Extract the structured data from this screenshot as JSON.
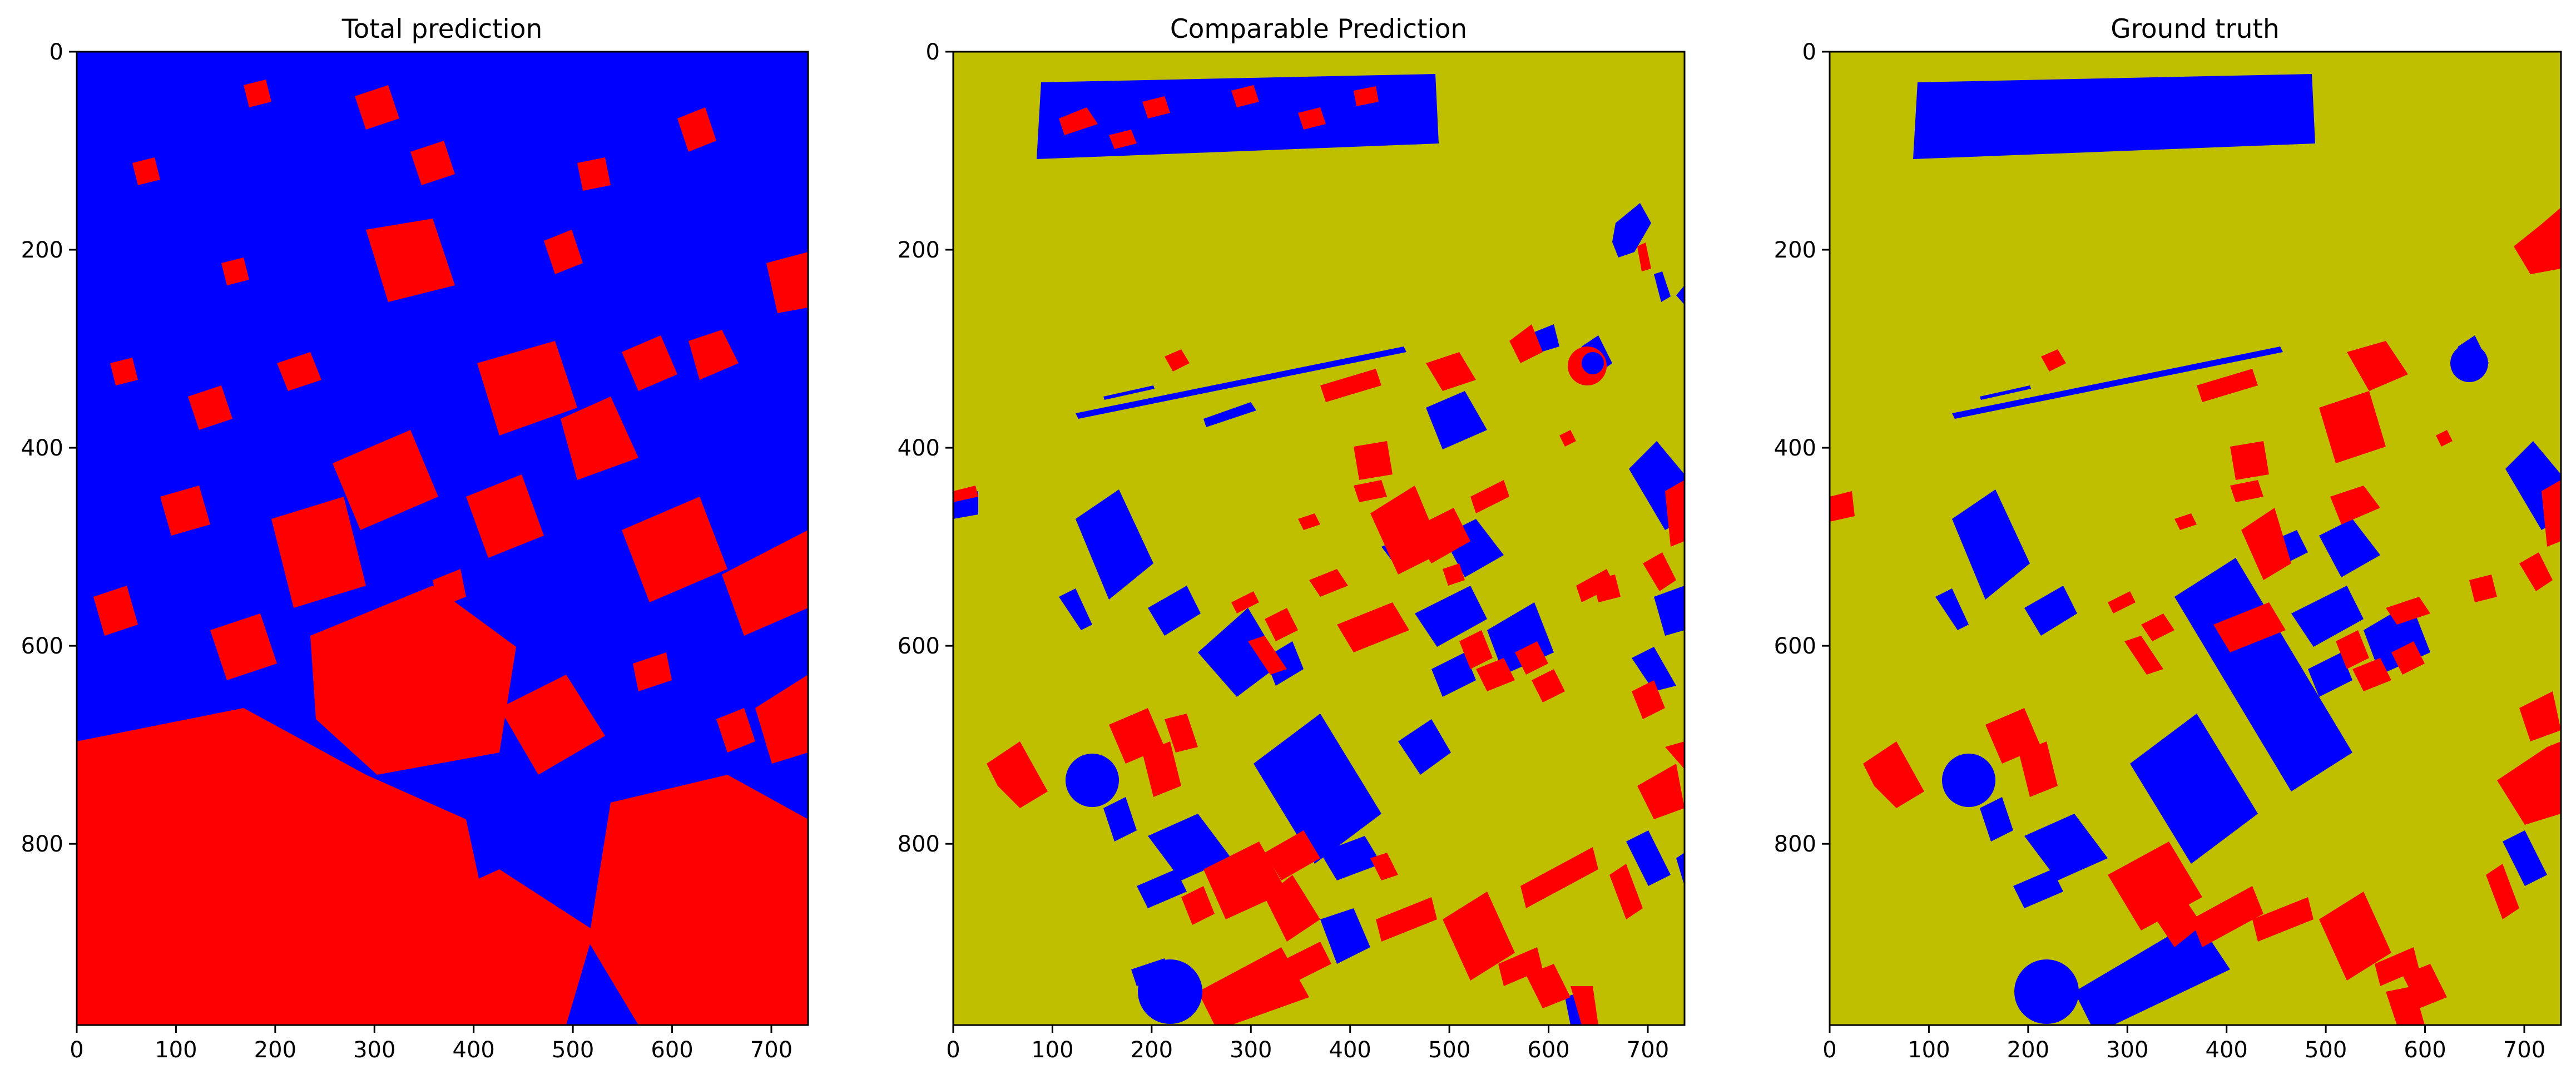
{
  "colors": {
    "background_class": "#bfbf00",
    "class_blue": "#0000ff",
    "class_red": "#ff0000",
    "axes_edge": "#000000"
  },
  "chart_data": [
    {
      "type": "heatmap",
      "title": "Total prediction",
      "xlim": [
        0,
        737
      ],
      "ylim": [
        983,
        0
      ],
      "xticks": [
        0,
        100,
        200,
        300,
        400,
        500,
        600,
        700
      ],
      "yticks": [
        0,
        200,
        400,
        600,
        800
      ],
      "classes": [
        "blue",
        "red"
      ],
      "legend": "none",
      "grid": false
    },
    {
      "type": "heatmap",
      "title": "Comparable Prediction",
      "xlim": [
        0,
        737
      ],
      "ylim": [
        983,
        0
      ],
      "xticks": [
        0,
        100,
        200,
        300,
        400,
        500,
        600,
        700
      ],
      "yticks": [
        0,
        200,
        400,
        600,
        800
      ],
      "classes": [
        "olive",
        "blue",
        "red"
      ],
      "legend": "none",
      "grid": false
    },
    {
      "type": "heatmap",
      "title": "Ground truth",
      "xlim": [
        0,
        737
      ],
      "ylim": [
        983,
        0
      ],
      "xticks": [
        0,
        100,
        200,
        300,
        400,
        500,
        600,
        700
      ],
      "yticks": [
        0,
        200,
        400,
        600,
        800
      ],
      "classes": [
        "olive",
        "blue",
        "red"
      ],
      "legend": "none",
      "grid": false
    }
  ]
}
